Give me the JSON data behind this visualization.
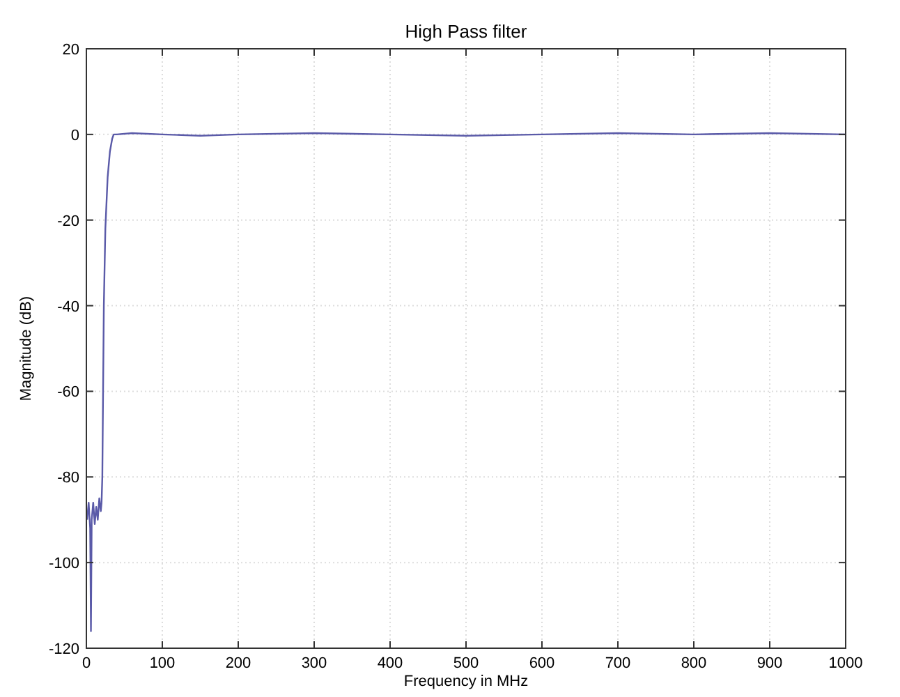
{
  "chart_data": {
    "type": "line",
    "title": "High Pass filter",
    "xlabel": "Frequency in MHz",
    "ylabel": "Magnitude (dB)",
    "x": [
      1,
      3,
      5,
      6,
      7,
      9,
      11,
      13,
      15,
      17,
      19,
      20,
      21,
      22,
      23,
      25,
      28,
      31,
      34,
      36,
      40,
      60,
      100,
      150,
      200,
      300,
      400,
      500,
      600,
      700,
      800,
      900,
      1000
    ],
    "series": [
      {
        "color": "#5a5aa8",
        "values": [
          -90,
          -86,
          -92,
          -116,
          -90,
          -86,
          -91,
          -87,
          -90,
          -85,
          -88,
          -86,
          -80,
          -60,
          -40,
          -22,
          -10,
          -4,
          -1,
          0,
          0,
          0.3,
          0,
          -0.3,
          0,
          0.3,
          0,
          -0.3,
          0,
          0.3,
          0,
          0.3,
          0
        ]
      }
    ],
    "xlim": [
      0,
      1000
    ],
    "xticks": [
      0,
      100,
      200,
      300,
      400,
      500,
      600,
      700,
      800,
      900,
      1000
    ],
    "ylim": [
      -120,
      20
    ],
    "yticks": [
      -120,
      -100,
      -80,
      -60,
      -40,
      -20,
      0,
      20
    ],
    "grid": true,
    "line_style": "solid",
    "marker": "none"
  }
}
